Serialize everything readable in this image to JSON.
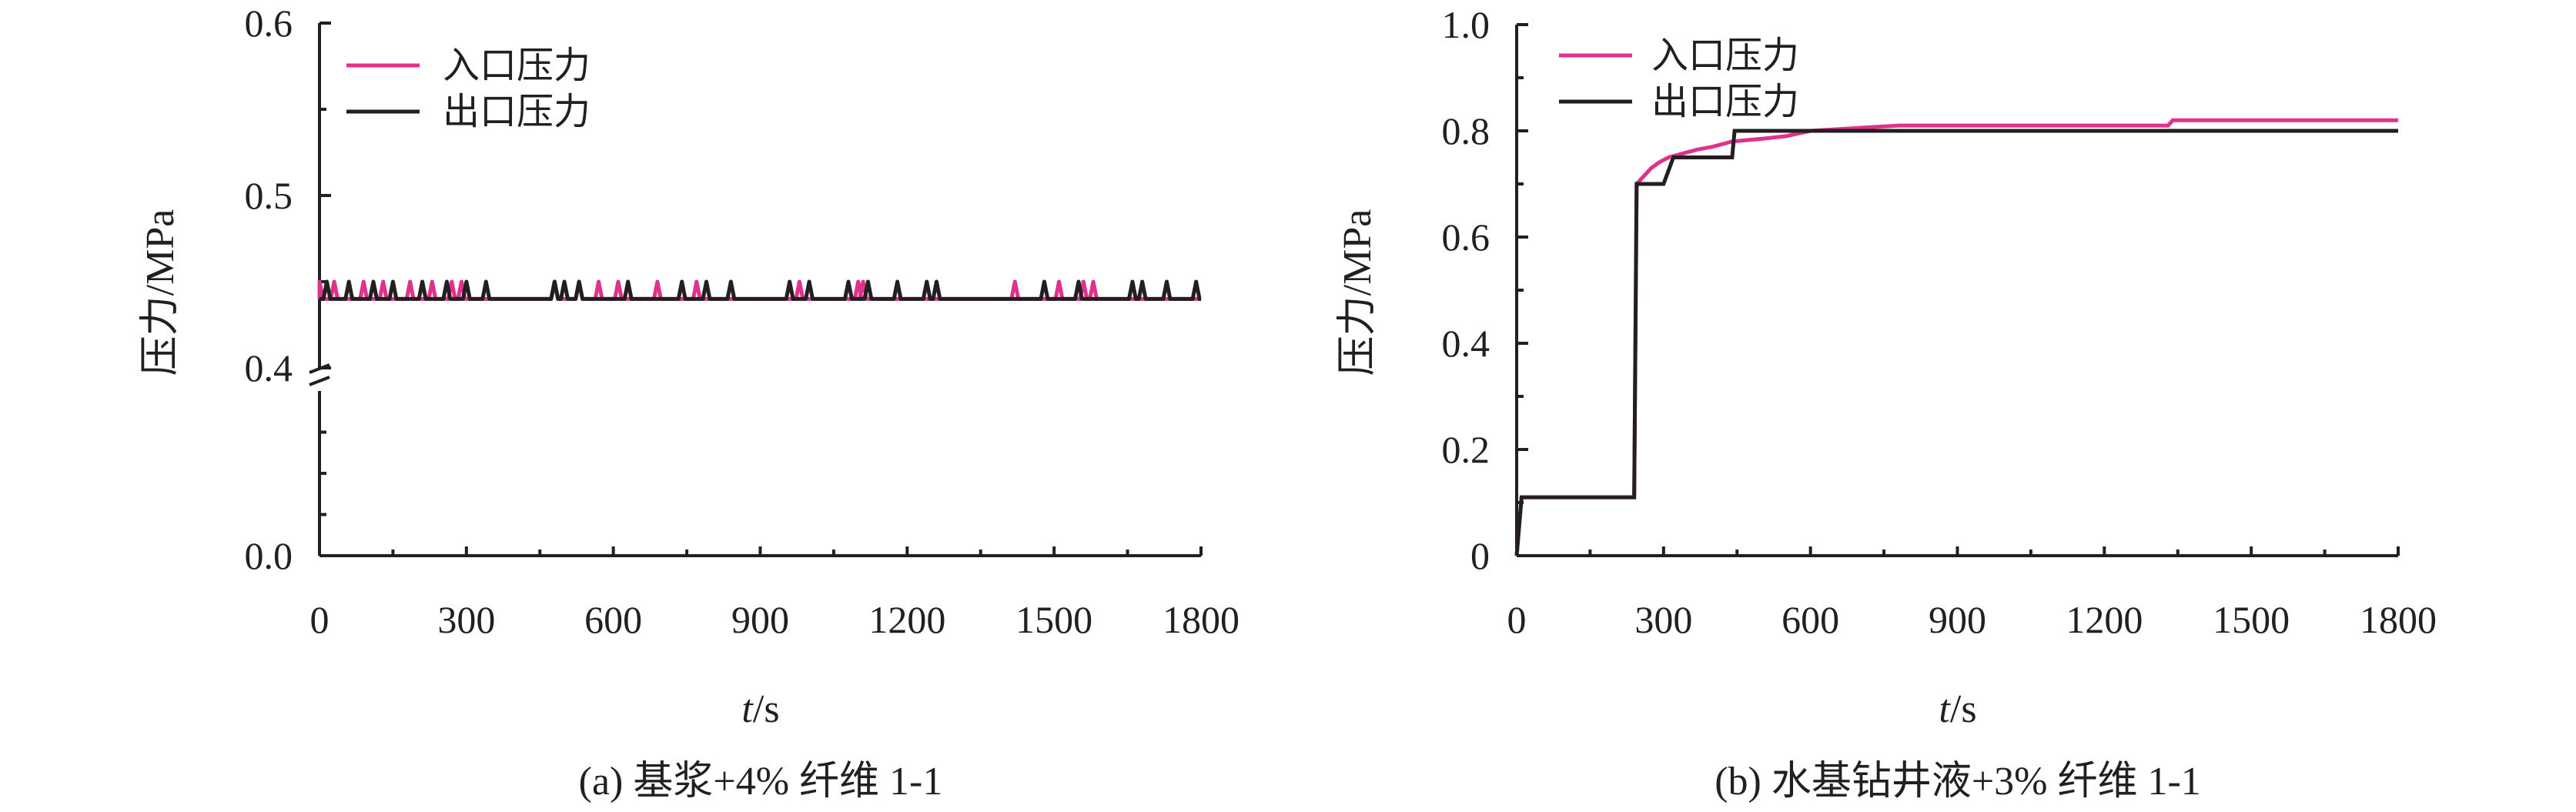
{
  "chart_data": [
    {
      "type": "line",
      "id": "a",
      "caption": "(a) 基浆+4% 纤维 1-1",
      "xlabel_italic": "t",
      "xlabel_unit": "/s",
      "ylabel": "压力/MPa",
      "xlim": [
        0,
        1800
      ],
      "x_ticks": [
        "0",
        "300",
        "600",
        "900",
        "1200",
        "1500",
        "1800"
      ],
      "y_ticks": [
        "0.0",
        "0.4",
        "0.5",
        "0.6"
      ],
      "y_axis_break": {
        "between": [
          0.0,
          0.4
        ]
      },
      "legend_position": "top-left",
      "colors": {
        "inlet": "#e0318c",
        "outlet": "#231f20"
      },
      "series": [
        {
          "name": "入口压力",
          "key": "inlet",
          "baseline": 0.44,
          "peak": 0.45,
          "spike_x": [
            0,
            30,
            90,
            130,
            185,
            230,
            270,
            290,
            480,
            530,
            570,
            610,
            690,
            770,
            980,
            1100,
            1110,
            1420,
            1510,
            1560,
            1580
          ]
        },
        {
          "name": "出口压力",
          "key": "outlet",
          "baseline": 0.44,
          "peak": 0.45,
          "spike_x": [
            15,
            60,
            110,
            150,
            210,
            260,
            300,
            340,
            480,
            500,
            530,
            630,
            740,
            790,
            840,
            960,
            1000,
            1080,
            1120,
            1180,
            1240,
            1260,
            1480,
            1550,
            1660,
            1680,
            1730,
            1790
          ]
        }
      ]
    },
    {
      "type": "line",
      "id": "b",
      "caption": "(b) 水基钻井液+3% 纤维 1-1",
      "xlabel_italic": "t",
      "xlabel_unit": "/s",
      "ylabel": "压力/MPa",
      "xlim": [
        0,
        1800
      ],
      "ylim": [
        0,
        1.0
      ],
      "x_ticks": [
        "0",
        "300",
        "600",
        "900",
        "1200",
        "1500",
        "1800"
      ],
      "y_ticks": [
        "0",
        "0.2",
        "0.4",
        "0.6",
        "0.8",
        "1.0"
      ],
      "legend_position": "top-left",
      "colors": {
        "inlet": "#e0318c",
        "outlet": "#231f20"
      },
      "series": [
        {
          "name": "入口压力",
          "key": "inlet",
          "x": [
            0,
            10,
            240,
            245,
            255,
            265,
            275,
            290,
            310,
            330,
            350,
            370,
            400,
            440,
            500,
            550,
            600,
            780,
            1330,
            1340,
            1800
          ],
          "y": [
            0,
            0.11,
            0.11,
            0.7,
            0.71,
            0.72,
            0.73,
            0.74,
            0.75,
            0.755,
            0.76,
            0.765,
            0.77,
            0.78,
            0.785,
            0.79,
            0.8,
            0.81,
            0.81,
            0.82,
            0.82
          ]
        },
        {
          "name": "出口压力",
          "key": "outlet",
          "x": [
            0,
            10,
            240,
            245,
            300,
            320,
            440,
            445,
            1800
          ],
          "y": [
            0,
            0.11,
            0.11,
            0.7,
            0.7,
            0.75,
            0.75,
            0.8,
            0.8
          ]
        }
      ]
    }
  ]
}
